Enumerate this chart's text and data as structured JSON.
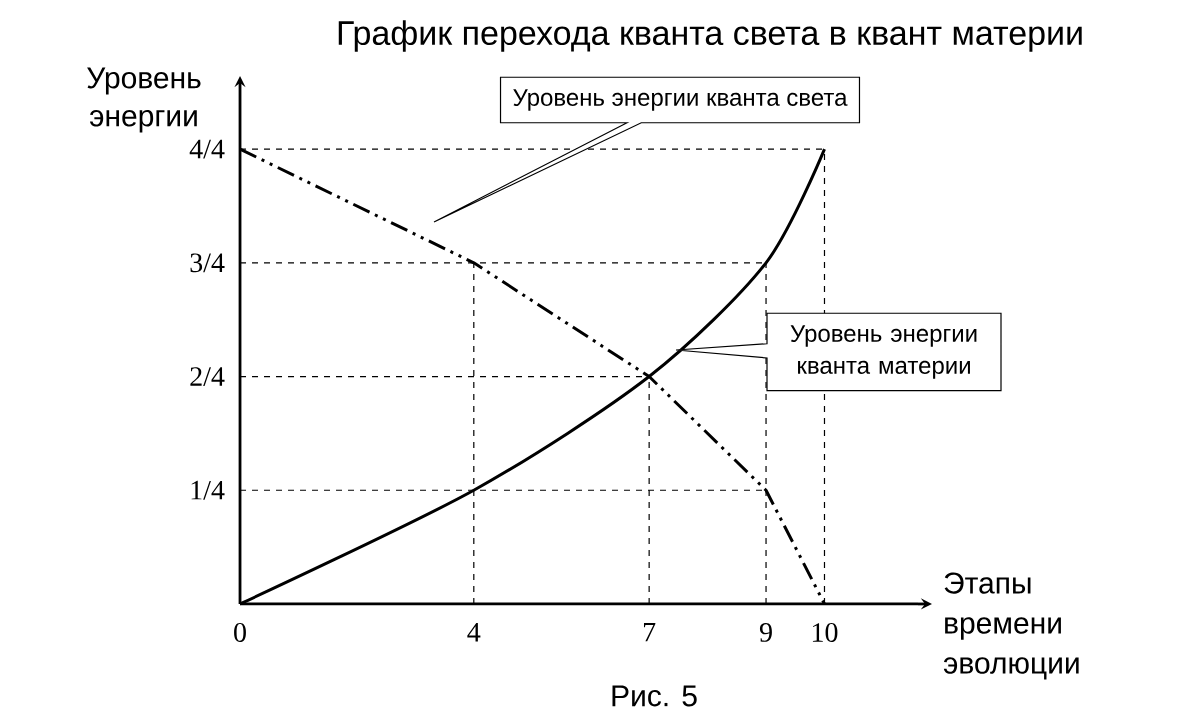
{
  "chart_data": {
    "type": "line",
    "title": "График перехода кванта света в квант материи",
    "xlabel": "Этапы времени эволюции",
    "ylabel": "Уровень энергии",
    "x": [
      0,
      4,
      7,
      9,
      10
    ],
    "series": [
      {
        "color": "#000000",
        "line_style": "dashdotdotted",
        "values": [
          1,
          0.75,
          0.5,
          0.25,
          0
        ]
      },
      {
        "color": "#000000",
        "line_style": "solid",
        "values": [
          0,
          0.25,
          0.5,
          0.75,
          1
        ]
      }
    ],
    "xlim": [
      0,
      11.6
    ],
    "ylim": [
      0,
      1.13
    ],
    "xticks": [
      0,
      4,
      7,
      9,
      10
    ],
    "yticks": [
      {
        "value": 0.25,
        "label": "1/4"
      },
      {
        "value": 0.5,
        "label": "2/4"
      },
      {
        "value": 0.75,
        "label": "3/4"
      },
      {
        "value": 1,
        "label": "4/4"
      }
    ],
    "ref_lines": [
      {
        "axis": "y",
        "value": 0.25
      },
      {
        "axis": "y",
        "value": 0.5
      },
      {
        "axis": "y",
        "value": 0.75
      },
      {
        "axis": "y",
        "value": 1
      },
      {
        "axis": "x",
        "value": 4
      },
      {
        "axis": "x",
        "value": 7
      },
      {
        "axis": "x",
        "value": 9
      },
      {
        "axis": "x",
        "value": 10
      }
    ],
    "annotations": [
      "Уровень энергии кванта света",
      "Уровень энергии кванта материи",
      "Рис. 5"
    ],
    "marker": "none",
    "grid": false
  }
}
